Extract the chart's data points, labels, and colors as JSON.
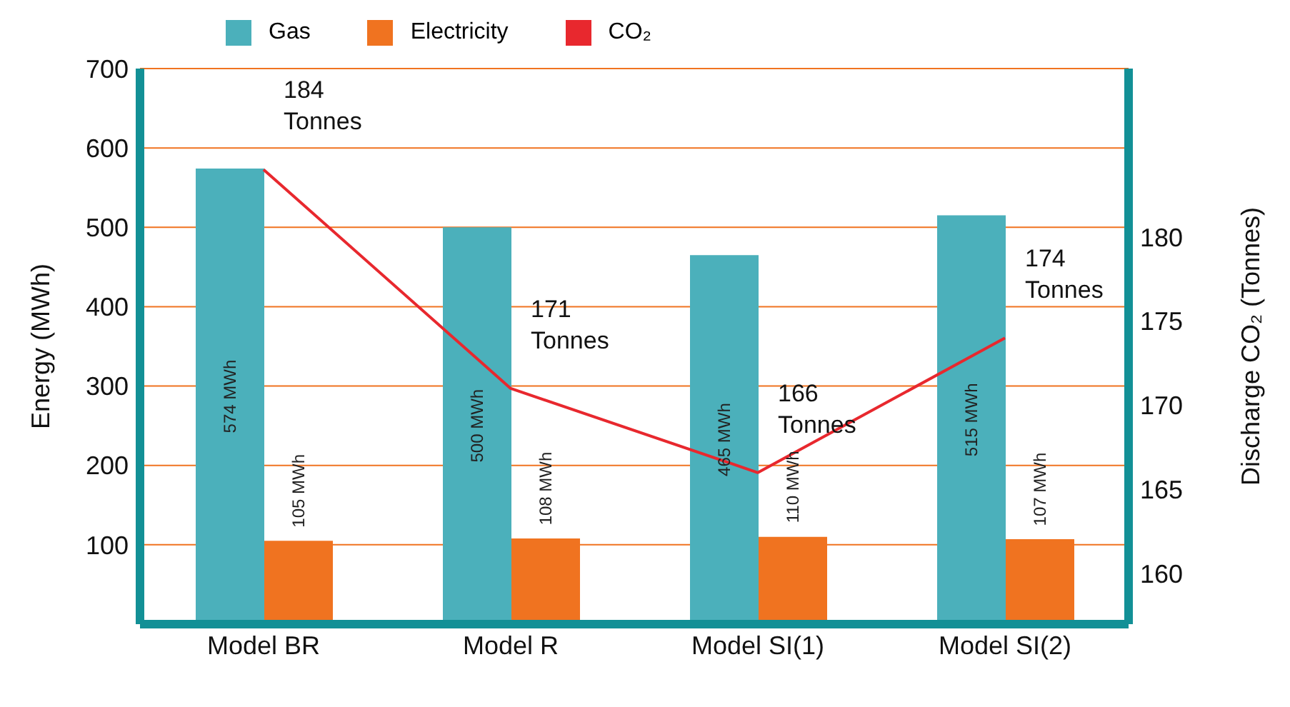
{
  "chart_data": {
    "type": "bar",
    "categories": [
      "Model BR",
      "Model R",
      "Model SI(1)",
      "Model SI(2)"
    ],
    "series": [
      {
        "name": "Gas",
        "color": "#4bb0bb",
        "values": [
          574,
          500,
          465,
          515
        ],
        "value_labels": [
          "574 MWh",
          "500 MWh",
          "465 MWh",
          "515 MWh"
        ]
      },
      {
        "name": "Electricity",
        "color": "#f07320",
        "values": [
          105,
          108,
          110,
          107
        ],
        "value_labels": [
          "105 MWh",
          "108 MWh",
          "110 MWh",
          "107 MWh"
        ]
      },
      {
        "name": "CO₂",
        "type": "line",
        "axis": "y2",
        "color": "#e8282e",
        "values": [
          184,
          171,
          166,
          174
        ],
        "value_labels": [
          "184 Tonnes",
          "171 Tonnes",
          "166 Tonnes",
          "174 Tonnes"
        ]
      }
    ],
    "ylabel": "Energy (MWh)",
    "y2label": "Discharge CO₂  (Tonnes)",
    "ylim": [
      0,
      700
    ],
    "yticks": [
      100,
      200,
      300,
      400,
      500,
      600,
      700
    ],
    "y2lim": [
      157,
      190
    ],
    "y2ticks": [
      160,
      165,
      170,
      175,
      180
    ],
    "grid": "y",
    "legend": "top"
  }
}
